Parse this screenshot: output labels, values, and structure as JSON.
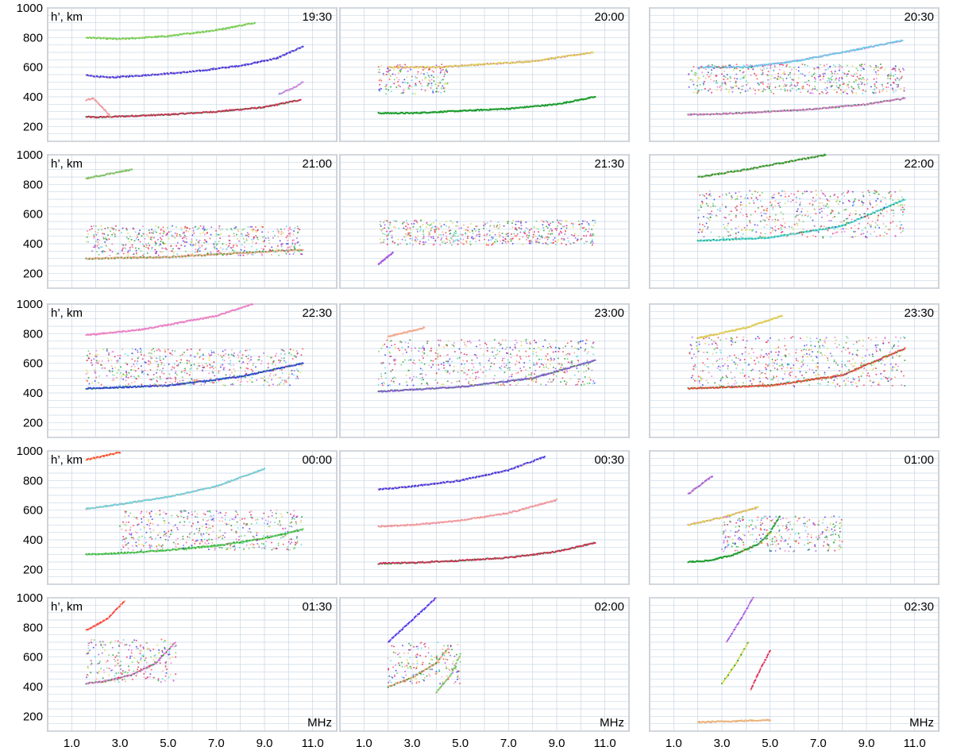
{
  "figure": {
    "x_unit_label": "MHz",
    "y_unit_label": "h’, km",
    "x_tick_labels": [
      "1.0",
      "3.0",
      "5.0",
      "7.0",
      "9.0",
      "11.0"
    ],
    "y_tick_labels": [
      "200",
      "400",
      "600",
      "800",
      "1000"
    ]
  },
  "chart_data": {
    "type": "scatter",
    "xlim": [
      0.0,
      12.0
    ],
    "ylim": [
      100,
      1000
    ],
    "x_ticks": [
      1.0,
      3.0,
      5.0,
      7.0,
      9.0,
      11.0
    ],
    "y_ticks": [
      200,
      400,
      600,
      800,
      1000
    ],
    "grid": true,
    "trace_colors": [
      "#e0245e",
      "#1f9d2e",
      "#e87ad8",
      "#f2a88e",
      "#d9d94a",
      "#5ad6e8",
      "#3a3af0",
      "#9b59e6",
      "#ff4444",
      "#66cc66"
    ],
    "panels": [
      {
        "time": "19:30",
        "traces": [
          {
            "kind": "line",
            "f": [
              1.6,
              2.0,
              3.0,
              5.0,
              7.0,
              9.0,
              10.5
            ],
            "h": [
              265,
              262,
              268,
              280,
              300,
              330,
              380
            ]
          },
          {
            "kind": "line",
            "f": [
              1.6,
              1.9,
              2.2,
              2.6
            ],
            "h": [
              380,
              390,
              340,
              270
            ]
          },
          {
            "kind": "line",
            "f": [
              1.6,
              2.5,
              4.0,
              6.0,
              8.0,
              9.5,
              10.6
            ],
            "h": [
              545,
              530,
              545,
              570,
              610,
              660,
              740
            ]
          },
          {
            "kind": "line",
            "f": [
              1.6,
              3.0,
              5.0,
              7.0,
              8.6
            ],
            "h": [
              800,
              790,
              810,
              850,
              900
            ]
          },
          {
            "kind": "line",
            "f": [
              9.6,
              10.2,
              10.6
            ],
            "h": [
              420,
              460,
              500
            ]
          }
        ]
      },
      {
        "time": "20:00",
        "traces": [
          {
            "kind": "line",
            "f": [
              1.6,
              3.0,
              5.0,
              7.0,
              9.0,
              10.6
            ],
            "h": [
              290,
              290,
              305,
              320,
              350,
              400
            ]
          },
          {
            "kind": "line",
            "f": [
              2.0,
              4.0,
              6.0,
              8.0,
              10.5
            ],
            "h": [
              600,
              600,
              620,
              640,
              700
            ]
          },
          {
            "kind": "cloud",
            "f": [
              1.6,
              4.5
            ],
            "h": [
              420,
              620
            ]
          }
        ]
      },
      {
        "time": "20:30",
        "traces": [
          {
            "kind": "line",
            "f": [
              1.6,
              3.0,
              5.0,
              7.0,
              9.0,
              10.6
            ],
            "h": [
              280,
              285,
              300,
              320,
              350,
              390
            ]
          },
          {
            "kind": "line",
            "f": [
              2.0,
              4.0,
              6.0,
              8.0,
              10.5
            ],
            "h": [
              600,
              600,
              640,
              700,
              780
            ]
          },
          {
            "kind": "cloud",
            "f": [
              1.6,
              10.6
            ],
            "h": [
              420,
              620
            ]
          }
        ]
      },
      {
        "time": "21:00",
        "traces": [
          {
            "kind": "line",
            "f": [
              1.6,
              5.0,
              10.6
            ],
            "h": [
              300,
              310,
              360
            ]
          },
          {
            "kind": "cloud",
            "f": [
              1.6,
              10.6
            ],
            "h": [
              320,
              520
            ]
          },
          {
            "kind": "line",
            "f": [
              1.6,
              2.5,
              3.5
            ],
            "h": [
              840,
              870,
              900
            ]
          }
        ]
      },
      {
        "time": "21:30",
        "traces": [
          {
            "kind": "cloud",
            "f": [
              1.6,
              10.6
            ],
            "h": [
              390,
              560
            ]
          },
          {
            "kind": "line",
            "f": [
              1.6,
              2.2
            ],
            "h": [
              260,
              340
            ]
          }
        ]
      },
      {
        "time": "22:00",
        "traces": [
          {
            "kind": "line",
            "f": [
              2.0,
              5.0,
              8.0,
              10.6
            ],
            "h": [
              420,
              440,
              520,
              700
            ]
          },
          {
            "kind": "cloud",
            "f": [
              2.0,
              10.6
            ],
            "h": [
              440,
              760
            ]
          },
          {
            "kind": "line",
            "f": [
              2.0,
              4.0,
              6.0,
              7.3
            ],
            "h": [
              850,
              900,
              960,
              1000
            ]
          }
        ]
      },
      {
        "time": "22:30",
        "traces": [
          {
            "kind": "line",
            "f": [
              1.6,
              5.0,
              8.0,
              10.6
            ],
            "h": [
              430,
              450,
              510,
              600
            ]
          },
          {
            "kind": "cloud",
            "f": [
              1.6,
              10.6
            ],
            "h": [
              450,
              700
            ]
          },
          {
            "kind": "line",
            "f": [
              1.6,
              4.0,
              7.0,
              8.5
            ],
            "h": [
              790,
              830,
              920,
              1000
            ]
          }
        ]
      },
      {
        "time": "23:00",
        "traces": [
          {
            "kind": "line",
            "f": [
              1.6,
              5.0,
              8.0,
              10.6
            ],
            "h": [
              410,
              440,
              500,
              620
            ]
          },
          {
            "kind": "cloud",
            "f": [
              1.6,
              10.6
            ],
            "h": [
              450,
              760
            ]
          },
          {
            "kind": "line",
            "f": [
              2.0,
              3.5
            ],
            "h": [
              780,
              840
            ]
          }
        ]
      },
      {
        "time": "23:30",
        "traces": [
          {
            "kind": "line",
            "f": [
              1.6,
              5.0,
              8.0,
              10.6
            ],
            "h": [
              430,
              450,
              520,
              700
            ]
          },
          {
            "kind": "cloud",
            "f": [
              1.6,
              10.6
            ],
            "h": [
              440,
              780
            ]
          },
          {
            "kind": "line",
            "f": [
              2.0,
              4.0,
              5.5
            ],
            "h": [
              770,
              840,
              920
            ]
          }
        ]
      },
      {
        "time": "00:00",
        "traces": [
          {
            "kind": "line",
            "f": [
              1.6,
              3.0,
              5.0,
              7.0,
              9.0,
              10.6
            ],
            "h": [
              300,
              310,
              330,
              360,
              410,
              470
            ]
          },
          {
            "kind": "cloud",
            "f": [
              3.0,
              10.6
            ],
            "h": [
              330,
              600
            ]
          },
          {
            "kind": "line",
            "f": [
              1.6,
              3.0,
              5.0,
              7.0,
              9.0
            ],
            "h": [
              610,
              640,
              690,
              760,
              880
            ]
          },
          {
            "kind": "line",
            "f": [
              1.6,
              3.0
            ],
            "h": [
              940,
              990
            ]
          }
        ]
      },
      {
        "time": "00:30",
        "traces": [
          {
            "kind": "line",
            "f": [
              1.6,
              3.0,
              5.0,
              7.0,
              9.0,
              10.6
            ],
            "h": [
              240,
              245,
              260,
              280,
              320,
              380
            ]
          },
          {
            "kind": "line",
            "f": [
              1.6,
              3.0,
              5.0,
              7.0,
              9.0
            ],
            "h": [
              490,
              500,
              530,
              580,
              670
            ]
          },
          {
            "kind": "line",
            "f": [
              1.6,
              3.0,
              5.0,
              7.0,
              8.5
            ],
            "h": [
              740,
              760,
              800,
              870,
              960
            ]
          }
        ]
      },
      {
        "time": "01:00",
        "traces": [
          {
            "kind": "line",
            "f": [
              1.6,
              2.5,
              3.5,
              4.5,
              5.0,
              5.4
            ],
            "h": [
              250,
              260,
              300,
              370,
              450,
              560
            ]
          },
          {
            "kind": "line",
            "f": [
              1.6,
              3.0,
              4.5
            ],
            "h": [
              500,
              550,
              620
            ]
          },
          {
            "kind": "line",
            "f": [
              1.6,
              2.6
            ],
            "h": [
              710,
              830
            ]
          },
          {
            "kind": "cloud",
            "f": [
              3.0,
              8.0
            ],
            "h": [
              320,
              560
            ]
          }
        ]
      },
      {
        "time": "01:30",
        "traces": [
          {
            "kind": "line",
            "f": [
              1.6,
              2.5,
              3.5,
              4.5,
              5.3
            ],
            "h": [
              420,
              440,
              480,
              560,
              700
            ]
          },
          {
            "kind": "cloud",
            "f": [
              1.6,
              5.4
            ],
            "h": [
              430,
              720
            ]
          },
          {
            "kind": "line",
            "f": [
              1.6,
              2.5,
              3.2
            ],
            "h": [
              780,
              860,
              980
            ]
          }
        ]
      },
      {
        "time": "02:00",
        "traces": [
          {
            "kind": "line",
            "f": [
              2.0,
              3.0,
              4.0,
              4.5
            ],
            "h": [
              400,
              460,
              560,
              660
            ]
          },
          {
            "kind": "line",
            "f": [
              2.0,
              3.0,
              4.0
            ],
            "h": [
              700,
              850,
              1000
            ]
          },
          {
            "kind": "line",
            "f": [
              4.0,
              4.6,
              5.0
            ],
            "h": [
              360,
              480,
              620
            ]
          },
          {
            "kind": "cloud",
            "f": [
              2.0,
              5.0
            ],
            "h": [
              420,
              700
            ]
          }
        ]
      },
      {
        "time": "02:30",
        "traces": [
          {
            "kind": "line",
            "f": [
              3.0,
              3.6,
              4.1
            ],
            "h": [
              420,
              560,
              700
            ]
          },
          {
            "kind": "line",
            "f": [
              3.2,
              3.8,
              4.3
            ],
            "h": [
              700,
              860,
              1000
            ]
          },
          {
            "kind": "line",
            "f": [
              4.2,
              4.6,
              5.0
            ],
            "h": [
              380,
              520,
              640
            ]
          },
          {
            "kind": "line",
            "f": [
              2.0,
              3.0,
              4.0,
              5.0
            ],
            "h": [
              160,
              165,
              170,
              175
            ]
          }
        ]
      }
    ]
  }
}
